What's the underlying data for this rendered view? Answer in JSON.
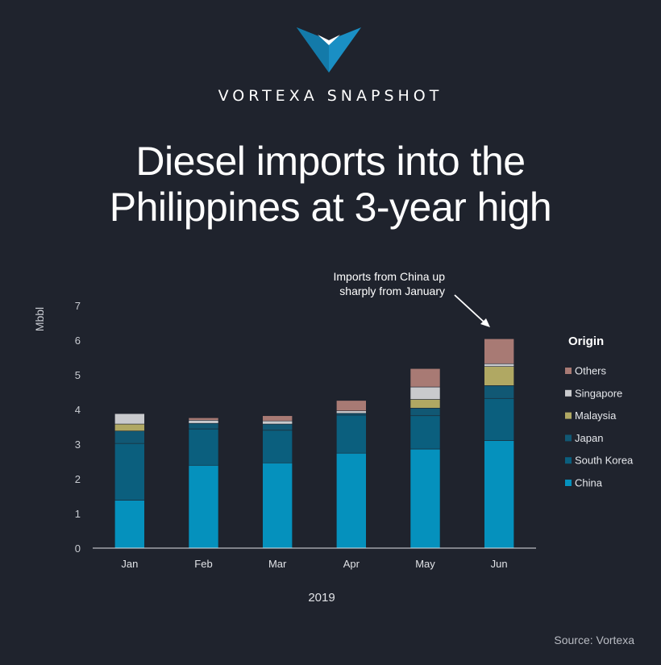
{
  "brand": {
    "name": "VORTEXA SNAPSHOT"
  },
  "title": {
    "line1": "Diesel imports into the",
    "line2": "Philippines at 3-year high"
  },
  "annotation": {
    "line1": "Imports from China up",
    "line2": "sharply from January"
  },
  "source": "Source: Vortexa",
  "colors": {
    "background": "#1f232d",
    "China": "#0591bd",
    "South Korea": "#0b5f7e",
    "Japan": "#115874",
    "Malaysia": "#b0a863",
    "Singapore": "#c9cacd",
    "Others": "#a87a74",
    "logo_blue": "#1a8fc4"
  },
  "chart_data": {
    "type": "bar",
    "stacked": true,
    "categories": [
      "Jan",
      "Feb",
      "Mar",
      "Apr",
      "May",
      "Jun"
    ],
    "xlabel": "2019",
    "ylabel": "Mbbl",
    "ylim": [
      0,
      7
    ],
    "yticks": [
      0,
      1,
      2,
      3,
      4,
      5,
      6,
      7
    ],
    "grid": false,
    "legend_title": "Origin",
    "legend_position": "right",
    "series": [
      {
        "name": "China",
        "values": [
          1.38,
          2.39,
          2.46,
          2.74,
          2.86,
          3.1
        ]
      },
      {
        "name": "South Korea",
        "values": [
          1.64,
          1.05,
          0.94,
          1.1,
          0.96,
          1.22
        ]
      },
      {
        "name": "Japan",
        "values": [
          0.36,
          0.16,
          0.18,
          0.05,
          0.22,
          0.37
        ]
      },
      {
        "name": "Malaysia",
        "values": [
          0.2,
          0.0,
          0.0,
          0.0,
          0.25,
          0.55
        ]
      },
      {
        "name": "Singapore",
        "values": [
          0.3,
          0.09,
          0.09,
          0.07,
          0.36,
          0.08
        ]
      },
      {
        "name": "Others",
        "values": [
          0.0,
          0.07,
          0.15,
          0.3,
          0.53,
          0.72
        ]
      }
    ]
  }
}
